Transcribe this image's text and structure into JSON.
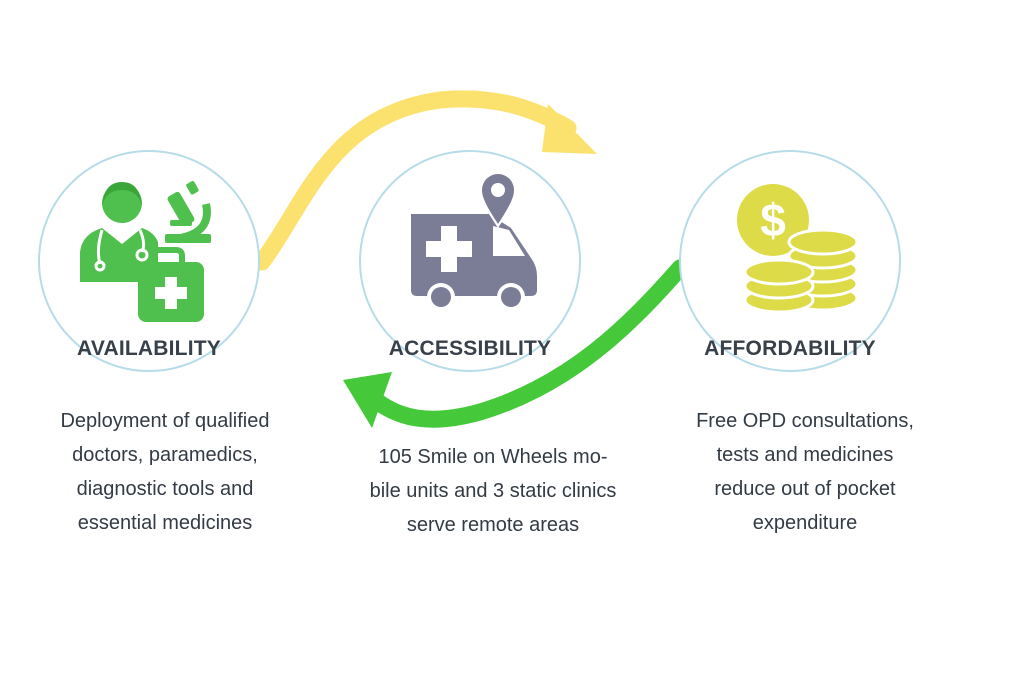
{
  "colors": {
    "green": "#4fbf4d",
    "arrow_green": "#45c93b",
    "yellow": "#fbe26f",
    "coin_yellow": "#dedb48",
    "gray": "#7b7d96",
    "circle_border": "#b7dbe9",
    "label_text": "#38404a"
  },
  "arrows": [
    {
      "name": "availability-to-affordability",
      "color": "yellow"
    },
    {
      "name": "affordability-to-availability",
      "color": "green"
    }
  ],
  "pillars": [
    {
      "icon": "doctor-microscope-medkit-icon",
      "label": "AVAILABILITY",
      "description_lines": [
        "Deployment of qualified",
        "doctors, paramedics,",
        "diagnostic tools and",
        "essential medicines"
      ]
    },
    {
      "icon": "ambulance-location-pin-icon",
      "label": "ACCESSIBILITY",
      "description_lines": [
        "105 Smile on Wheels mo-",
        "bile units and 3 static clinics",
        "serve remote areas"
      ]
    },
    {
      "icon": "dollar-coins-icon",
      "label": "AFFORDABILITY",
      "description_lines": [
        "Free OPD consultations,",
        "tests and medicines",
        "reduce out of pocket",
        "expenditure"
      ]
    }
  ]
}
